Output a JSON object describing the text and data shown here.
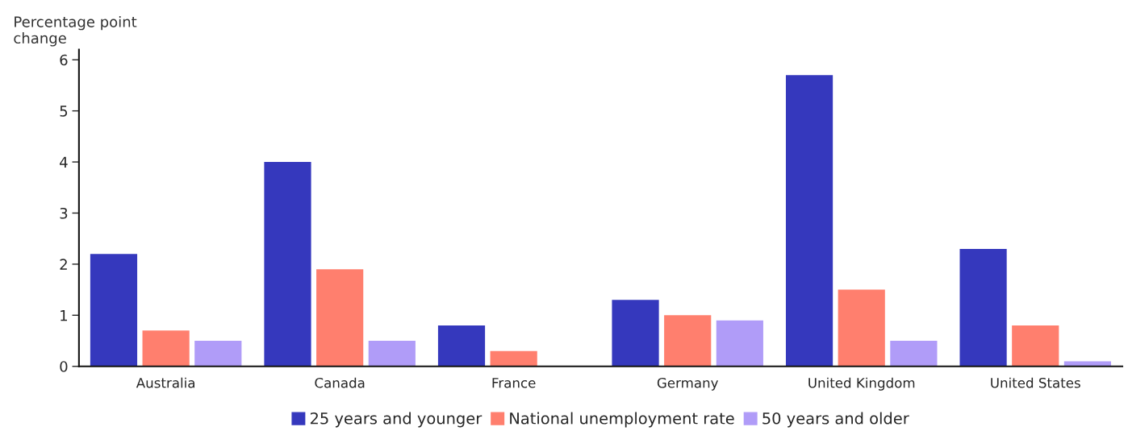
{
  "chart_data": {
    "type": "bar",
    "ylabel": "Percentage point\nchange",
    "categories": [
      "Australia",
      "Canada",
      "France",
      "Germany",
      "United Kingdom",
      "United States"
    ],
    "series": [
      {
        "name": "25 years and younger",
        "color": "#3538bd",
        "values": [
          2.2,
          4.0,
          0.8,
          1.3,
          5.7,
          2.3
        ]
      },
      {
        "name": "National unemployment rate",
        "color": "#ff7f6e",
        "values": [
          0.7,
          1.9,
          0.3,
          1.0,
          1.5,
          0.8
        ]
      },
      {
        "name": "50 years and older",
        "color": "#b09cf8",
        "values": [
          0.5,
          0.5,
          0,
          0.9,
          0.5,
          0.1
        ]
      }
    ],
    "ylim": [
      0,
      6.2
    ],
    "yticks": [
      0,
      1,
      2,
      3,
      4,
      5,
      6
    ],
    "grid": false,
    "legend": "bottom"
  }
}
